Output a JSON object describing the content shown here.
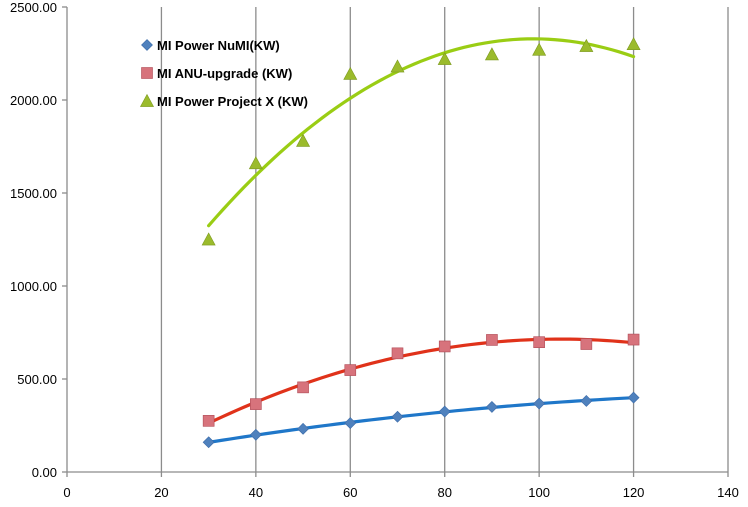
{
  "chart_data": {
    "type": "scatter",
    "title": "",
    "xlabel": "",
    "ylabel": "",
    "xlim": [
      0,
      140
    ],
    "ylim": [
      0,
      2500
    ],
    "x_ticks": [
      0,
      20,
      40,
      60,
      80,
      100,
      120,
      140
    ],
    "y_ticks": [
      0,
      500,
      1000,
      1500,
      2000,
      2500
    ],
    "x_tick_labels": [
      "0",
      "20",
      "40",
      "60",
      "80",
      "100",
      "120",
      "140"
    ],
    "y_tick_labels": [
      "0.00",
      "500.00",
      "1000.00",
      "1500.00",
      "2000.00",
      "2500.00"
    ],
    "grid": "vertical",
    "legend_position": "top-left",
    "series": [
      {
        "name": "MI Power NuMI(KW)",
        "marker": "diamond",
        "marker_color": "#4f81bd",
        "trend_color": "#1f77c9",
        "x": [
          30,
          40,
          50,
          60,
          70,
          80,
          90,
          100,
          110,
          120
        ],
        "y": [
          160,
          200,
          232,
          263,
          297,
          325,
          350,
          368,
          382,
          400
        ],
        "trendline": "polynomial"
      },
      {
        "name": "MI  ANU-upgrade (KW)",
        "marker": "square",
        "marker_color": "#d7737c",
        "trend_color": "#e0321a",
        "x": [
          30,
          40,
          50,
          60,
          70,
          80,
          90,
          100,
          110,
          120
        ],
        "y": [
          275,
          365,
          455,
          548,
          638,
          675,
          710,
          698,
          688,
          712
        ],
        "trendline": "polynomial"
      },
      {
        "name": "MI Power Project X (KW)",
        "marker": "triangle",
        "marker_color": "#9bbb2c",
        "trend_color": "#9acd14",
        "x": [
          30,
          40,
          50,
          60,
          70,
          80,
          90,
          100,
          110,
          120
        ],
        "y": [
          1250,
          1660,
          1780,
          2140,
          2180,
          2220,
          2245,
          2270,
          2290,
          2300
        ],
        "trendline": "polynomial"
      }
    ]
  }
}
